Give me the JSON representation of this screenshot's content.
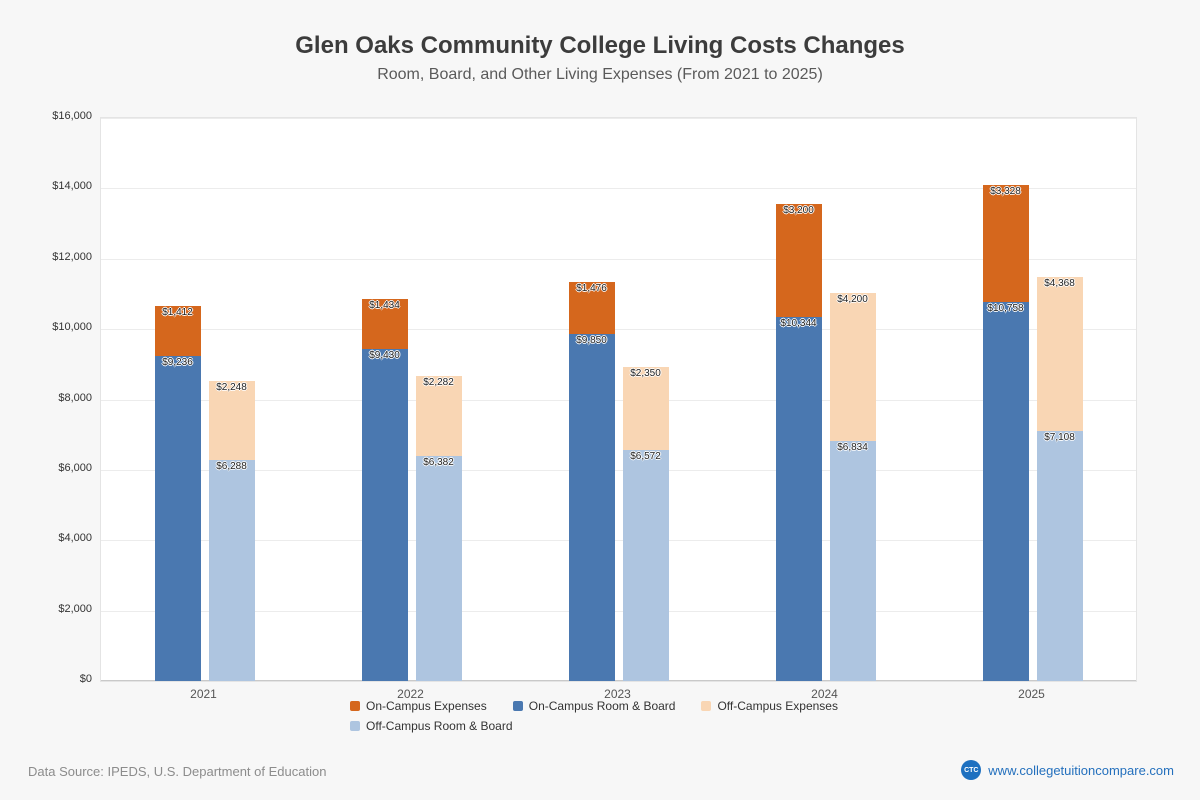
{
  "title": "Glen Oaks Community College Living Costs Changes",
  "subtitle": "Room, Board, and Other Living Expenses (From 2021 to 2025)",
  "footer": {
    "source": "Data Source: IPEDS, U.S. Department of Education",
    "site": "www.collegetuitioncompare.com",
    "logo": "CTC"
  },
  "chart_data": {
    "type": "bar",
    "stacked": true,
    "title": "Glen Oaks Community College Living Costs Changes",
    "subtitle": "Room, Board, and Other Living Expenses (From 2021 to 2025)",
    "categories": [
      "2021",
      "2022",
      "2023",
      "2024",
      "2025"
    ],
    "ylim": [
      0,
      16000
    ],
    "ytick_step": 2000,
    "grid": true,
    "legend_position": "bottom",
    "groups": [
      {
        "name": "on-campus",
        "segments": [
          {
            "name": "On-Campus Room & Board",
            "color": "#4a78b0",
            "values": [
              9236,
              9430,
              9850,
              10344,
              10758
            ]
          },
          {
            "name": "On-Campus Expenses",
            "color": "#d5671d",
            "values": [
              1412,
              1434,
              1476,
              3200,
              3328
            ]
          }
        ]
      },
      {
        "name": "off-campus",
        "segments": [
          {
            "name": "Off-Campus Room & Board",
            "color": "#aec5e0",
            "values": [
              6288,
              6382,
              6572,
              6834,
              7108
            ]
          },
          {
            "name": "Off-Campus Expenses",
            "color": "#f9d6b4",
            "values": [
              2248,
              2282,
              2350,
              4200,
              4368
            ]
          }
        ]
      }
    ],
    "legend": [
      {
        "label": "On-Campus Expenses",
        "color": "#d5671d"
      },
      {
        "label": "On-Campus Room & Board",
        "color": "#4a78b0"
      },
      {
        "label": "Off-Campus Expenses",
        "color": "#f9d6b4"
      },
      {
        "label": "Off-Campus Room & Board",
        "color": "#aec5e0"
      }
    ]
  }
}
